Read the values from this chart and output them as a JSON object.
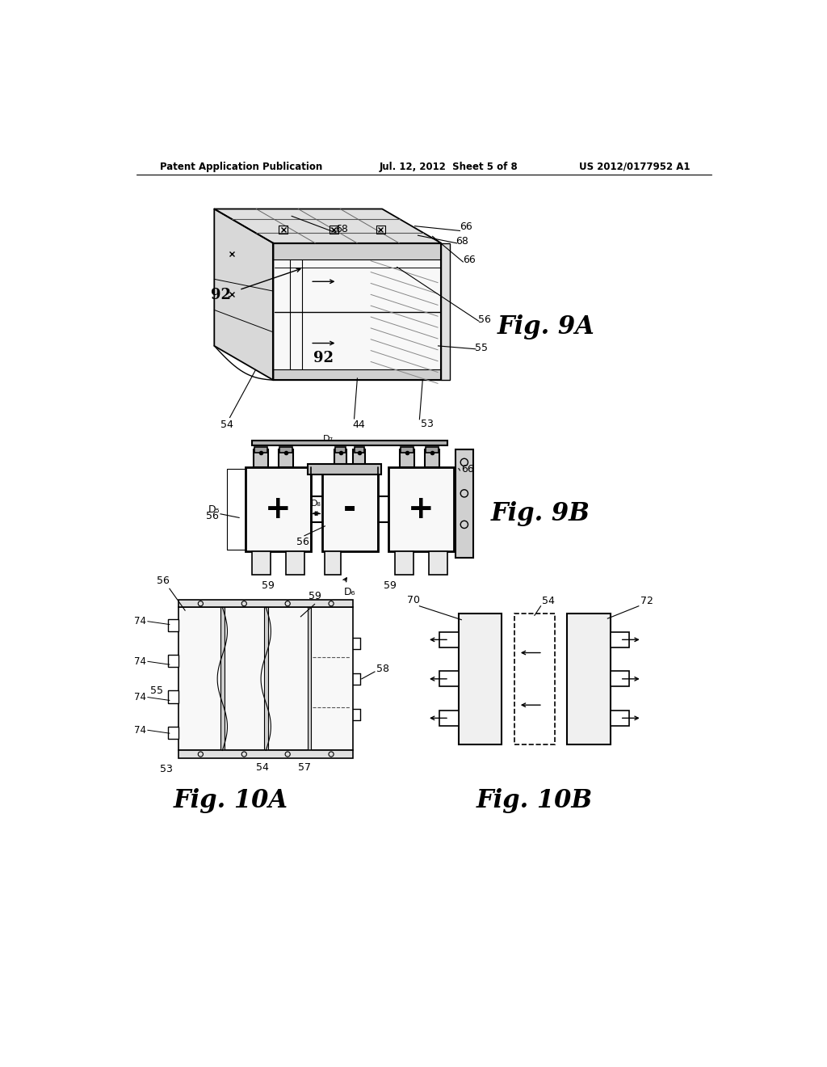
{
  "bg_color": "#ffffff",
  "header_left": "Patent Application Publication",
  "header_center": "Jul. 12, 2012  Sheet 5 of 8",
  "header_right": "US 2012/0177952 A1",
  "fig9a_label": "Fig. 9A",
  "fig9b_label": "Fig. 9B",
  "fig10a_label": "Fig. 10A",
  "fig10b_label": "Fig. 10B"
}
